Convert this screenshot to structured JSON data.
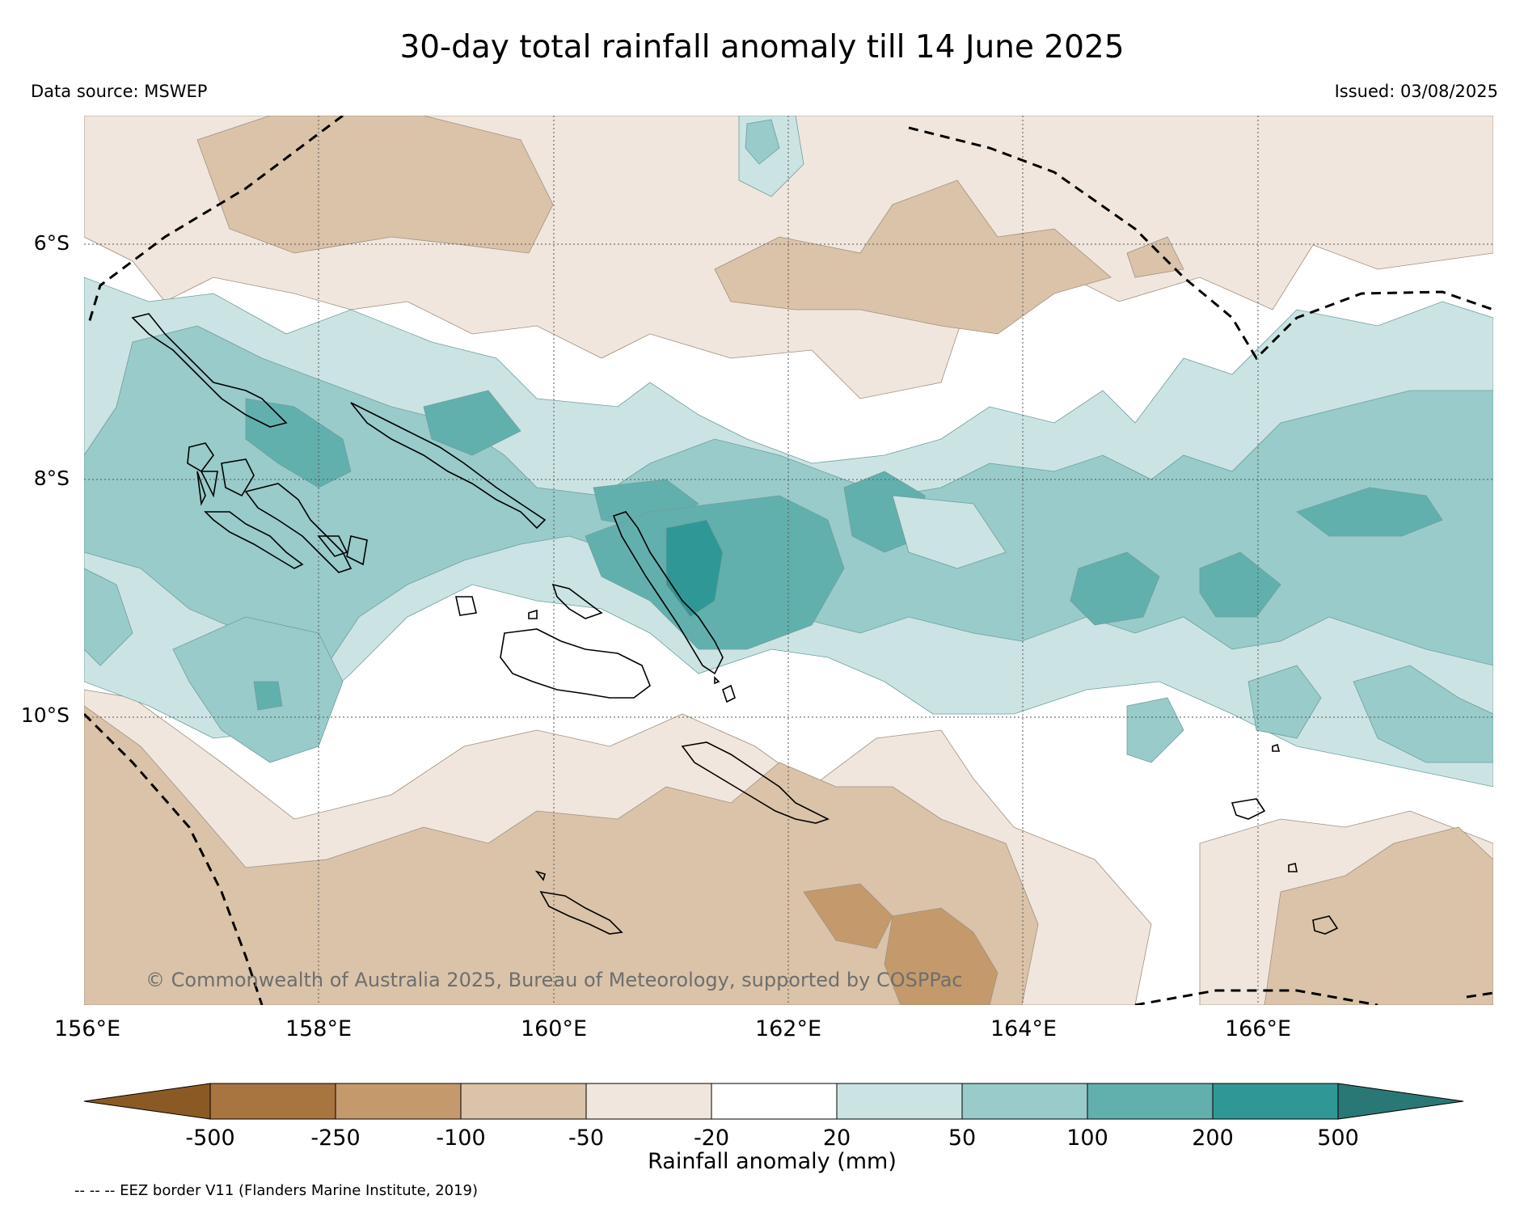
{
  "header": {
    "title": "30-day total rainfall anomaly till 14 June 2025",
    "source": "Data source: MSWEP",
    "issued": "Issued: 03/08/2025"
  },
  "map": {
    "extent": {
      "lon_min": 156,
      "lon_max": 168,
      "lat_min": -12.5,
      "lat_max": -4.9
    },
    "lat_ticks": [
      {
        "value": -6,
        "label": "6°S"
      },
      {
        "value": -8,
        "label": "8°S"
      },
      {
        "value": -10,
        "label": "10°S"
      }
    ],
    "lon_ticks": [
      {
        "value": 156,
        "label": "156°E"
      },
      {
        "value": 158,
        "label": "158°E"
      },
      {
        "value": 160,
        "label": "160°E"
      },
      {
        "value": 162,
        "label": "162°E"
      },
      {
        "value": 164,
        "label": "164°E"
      },
      {
        "value": 166,
        "label": "166°E"
      }
    ],
    "copyright": "© Commonwealth of Australia 2025, Bureau of Meteorology, supported by COSPPac",
    "layers": [
      "rainfall-anomaly-contours",
      "coastlines",
      "eez-border",
      "graticule"
    ]
  },
  "colorbar": {
    "label": "Rainfall anomaly (mm)",
    "ticks": [
      "-500",
      "-250",
      "-100",
      "-50",
      "-20",
      "20",
      "50",
      "100",
      "200",
      "500"
    ],
    "colors": [
      "#8b5a24",
      "#a8743f",
      "#c49a6c",
      "#dac3a9",
      "#f0e6dd",
      "#ffffff",
      "#cbe4e3",
      "#98cbca",
      "#62b0ae",
      "#2f9896",
      "#2a7875"
    ],
    "extend": "both"
  },
  "footnote": "-- -- -- EEZ border V11 (Flanders Marine Institute, 2019)"
}
